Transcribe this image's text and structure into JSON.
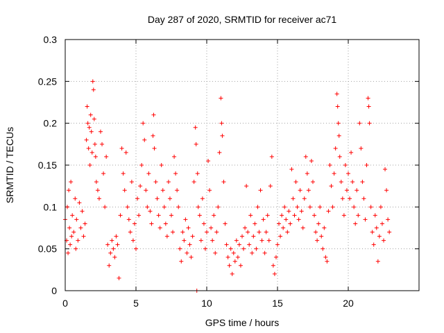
{
  "chart_data": {
    "type": "scatter",
    "title": "Day 287 of 2020, SRMTID for receiver ac71",
    "xlabel": "GPS time / hours",
    "ylabel": "SRMTID / TECUs",
    "xlim": [
      0,
      25
    ],
    "ylim": [
      0,
      0.3
    ],
    "xticks": [
      0,
      5,
      10,
      15,
      20
    ],
    "yticks": [
      0,
      0.05,
      0.1,
      0.15,
      0.2,
      0.25,
      0.3
    ],
    "xtick_labels": [
      "0",
      "5",
      "10",
      "15",
      "20"
    ],
    "ytick_labels": [
      "0",
      "0.05",
      "0.1",
      "0.15",
      "0.2",
      "0.25",
      "0.3"
    ],
    "grid": true,
    "marker": "+",
    "color": "#ff0000",
    "series": [
      {
        "name": "SRMTID",
        "points": [
          [
            0.0,
            0.085
          ],
          [
            0.1,
            0.06
          ],
          [
            0.15,
            0.1
          ],
          [
            0.2,
            0.045
          ],
          [
            0.25,
            0.12
          ],
          [
            0.3,
            0.075
          ],
          [
            0.35,
            0.055
          ],
          [
            0.4,
            0.13
          ],
          [
            0.45,
            0.065
          ],
          [
            0.5,
            0.09
          ],
          [
            0.6,
            0.07
          ],
          [
            0.7,
            0.11
          ],
          [
            0.75,
            0.05
          ],
          [
            0.8,
            0.085
          ],
          [
            0.9,
            0.06
          ],
          [
            1.0,
            0.105
          ],
          [
            1.1,
            0.075
          ],
          [
            1.2,
            0.095
          ],
          [
            1.3,
            0.065
          ],
          [
            1.4,
            0.08
          ],
          [
            1.5,
            0.18
          ],
          [
            1.55,
            0.22
          ],
          [
            1.6,
            0.2
          ],
          [
            1.65,
            0.17
          ],
          [
            1.7,
            0.195
          ],
          [
            1.75,
            0.15
          ],
          [
            1.8,
            0.21
          ],
          [
            1.85,
            0.19
          ],
          [
            1.9,
            0.165
          ],
          [
            1.95,
            0.25
          ],
          [
            2.0,
            0.24
          ],
          [
            2.05,
            0.205
          ],
          [
            2.1,
            0.175
          ],
          [
            2.15,
            0.16
          ],
          [
            2.2,
            0.13
          ],
          [
            2.3,
            0.12
          ],
          [
            2.4,
            0.11
          ],
          [
            2.5,
            0.19
          ],
          [
            2.6,
            0.175
          ],
          [
            2.7,
            0.14
          ],
          [
            2.8,
            0.1
          ],
          [
            2.9,
            0.16
          ],
          [
            3.0,
            0.055
          ],
          [
            3.1,
            0.03
          ],
          [
            3.2,
            0.045
          ],
          [
            3.3,
            0.06
          ],
          [
            3.4,
            0.05
          ],
          [
            3.5,
            0.04
          ],
          [
            3.6,
            0.065
          ],
          [
            3.7,
            0.055
          ],
          [
            3.8,
            0.015
          ],
          [
            3.9,
            0.09
          ],
          [
            4.0,
            0.17
          ],
          [
            4.1,
            0.14
          ],
          [
            4.2,
            0.12
          ],
          [
            4.3,
            0.165
          ],
          [
            4.4,
            0.1
          ],
          [
            4.5,
            0.085
          ],
          [
            4.6,
            0.07
          ],
          [
            4.7,
            0.13
          ],
          [
            4.8,
            0.06
          ],
          [
            4.9,
            0.08
          ],
          [
            5.0,
            0.05
          ],
          [
            5.1,
            0.11
          ],
          [
            5.2,
            0.09
          ],
          [
            5.3,
            0.125
          ],
          [
            5.4,
            0.15
          ],
          [
            5.5,
            0.2
          ],
          [
            5.6,
            0.18
          ],
          [
            5.7,
            0.12
          ],
          [
            5.8,
            0.1
          ],
          [
            5.9,
            0.14
          ],
          [
            6.0,
            0.095
          ],
          [
            6.1,
            0.08
          ],
          [
            6.2,
            0.185
          ],
          [
            6.25,
            0.21
          ],
          [
            6.3,
            0.17
          ],
          [
            6.4,
            0.13
          ],
          [
            6.5,
            0.11
          ],
          [
            6.6,
            0.09
          ],
          [
            6.7,
            0.075
          ],
          [
            6.8,
            0.15
          ],
          [
            6.9,
            0.12
          ],
          [
            7.0,
            0.1
          ],
          [
            7.1,
            0.08
          ],
          [
            7.2,
            0.065
          ],
          [
            7.3,
            0.13
          ],
          [
            7.4,
            0.11
          ],
          [
            7.5,
            0.09
          ],
          [
            7.6,
            0.07
          ],
          [
            7.7,
            0.16
          ],
          [
            7.8,
            0.14
          ],
          [
            7.9,
            0.12
          ],
          [
            8.0,
            0.1
          ],
          [
            8.1,
            0.05
          ],
          [
            8.2,
            0.035
          ],
          [
            8.3,
            0.07
          ],
          [
            8.4,
            0.06
          ],
          [
            8.5,
            0.085
          ],
          [
            8.6,
            0.045
          ],
          [
            8.7,
            0.075
          ],
          [
            8.8,
            0.055
          ],
          [
            8.9,
            0.04
          ],
          [
            9.0,
            0.065
          ],
          [
            9.1,
            0.13
          ],
          [
            9.2,
            0.195
          ],
          [
            9.25,
            0.175
          ],
          [
            9.3,
            0.0
          ],
          [
            9.35,
            0.14
          ],
          [
            9.4,
            0.1
          ],
          [
            9.5,
            0.09
          ],
          [
            9.6,
            0.06
          ],
          [
            9.7,
            0.11
          ],
          [
            9.8,
            0.08
          ],
          [
            9.9,
            0.05
          ],
          [
            10.0,
            0.07
          ],
          [
            10.1,
            0.155
          ],
          [
            10.2,
            0.12
          ],
          [
            10.3,
            0.075
          ],
          [
            10.4,
            0.06
          ],
          [
            10.5,
            0.09
          ],
          [
            10.6,
            0.045
          ],
          [
            10.7,
            0.07
          ],
          [
            10.8,
            0.1
          ],
          [
            10.9,
            0.165
          ],
          [
            11.0,
            0.23
          ],
          [
            11.05,
            0.2
          ],
          [
            11.1,
            0.185
          ],
          [
            11.2,
            0.13
          ],
          [
            11.3,
            0.08
          ],
          [
            11.4,
            0.055
          ],
          [
            11.5,
            0.04
          ],
          [
            11.6,
            0.03
          ],
          [
            11.7,
            0.05
          ],
          [
            11.8,
            0.02
          ],
          [
            11.9,
            0.045
          ],
          [
            12.0,
            0.035
          ],
          [
            12.1,
            0.06
          ],
          [
            12.2,
            0.04
          ],
          [
            12.3,
            0.055
          ],
          [
            12.4,
            0.03
          ],
          [
            12.5,
            0.065
          ],
          [
            12.6,
            0.05
          ],
          [
            12.7,
            0.075
          ],
          [
            12.8,
            0.125
          ],
          [
            12.9,
            0.07
          ],
          [
            13.0,
            0.055
          ],
          [
            13.1,
            0.09
          ],
          [
            13.2,
            0.045
          ],
          [
            13.3,
            0.065
          ],
          [
            13.4,
            0.08
          ],
          [
            13.5,
            0.05
          ],
          [
            13.6,
            0.1
          ],
          [
            13.7,
            0.07
          ],
          [
            13.8,
            0.12
          ],
          [
            13.9,
            0.06
          ],
          [
            14.0,
            0.085
          ],
          [
            14.1,
            0.045
          ],
          [
            14.2,
            0.07
          ],
          [
            14.3,
            0.09
          ],
          [
            14.4,
            0.06
          ],
          [
            14.5,
            0.125
          ],
          [
            14.6,
            0.16
          ],
          [
            14.7,
            0.03
          ],
          [
            14.8,
            0.02
          ],
          [
            14.9,
            0.04
          ],
          [
            15.0,
            0.055
          ],
          [
            15.1,
            0.08
          ],
          [
            15.2,
            0.065
          ],
          [
            15.3,
            0.09
          ],
          [
            15.4,
            0.075
          ],
          [
            15.5,
            0.1
          ],
          [
            15.6,
            0.085
          ],
          [
            15.7,
            0.07
          ],
          [
            15.8,
            0.095
          ],
          [
            15.9,
            0.08
          ],
          [
            16.0,
            0.145
          ],
          [
            16.1,
            0.11
          ],
          [
            16.2,
            0.09
          ],
          [
            16.3,
            0.13
          ],
          [
            16.4,
            0.1
          ],
          [
            16.5,
            0.085
          ],
          [
            16.6,
            0.12
          ],
          [
            16.7,
            0.095
          ],
          [
            16.8,
            0.075
          ],
          [
            16.9,
            0.11
          ],
          [
            17.0,
            0.16
          ],
          [
            17.1,
            0.14
          ],
          [
            17.2,
            0.12
          ],
          [
            17.3,
            0.1
          ],
          [
            17.4,
            0.155
          ],
          [
            17.5,
            0.13
          ],
          [
            17.6,
            0.09
          ],
          [
            17.7,
            0.07
          ],
          [
            17.8,
            0.06
          ],
          [
            17.9,
            0.08
          ],
          [
            18.0,
            0.1
          ],
          [
            18.1,
            0.065
          ],
          [
            18.2,
            0.05
          ],
          [
            18.3,
            0.075
          ],
          [
            18.4,
            0.04
          ],
          [
            18.5,
            0.035
          ],
          [
            18.6,
            0.095
          ],
          [
            18.7,
            0.15
          ],
          [
            18.8,
            0.125
          ],
          [
            18.9,
            0.1
          ],
          [
            19.0,
            0.14
          ],
          [
            19.1,
            0.17
          ],
          [
            19.2,
            0.235
          ],
          [
            19.25,
            0.22
          ],
          [
            19.3,
            0.2
          ],
          [
            19.35,
            0.185
          ],
          [
            19.4,
            0.16
          ],
          [
            19.5,
            0.13
          ],
          [
            19.6,
            0.11
          ],
          [
            19.7,
            0.09
          ],
          [
            19.8,
            0.15
          ],
          [
            19.9,
            0.12
          ],
          [
            20.0,
            0.14
          ],
          [
            20.1,
            0.11
          ],
          [
            20.2,
            0.165
          ],
          [
            20.3,
            0.13
          ],
          [
            20.4,
            0.1
          ],
          [
            20.5,
            0.08
          ],
          [
            20.6,
            0.12
          ],
          [
            20.7,
            0.09
          ],
          [
            20.8,
            0.2
          ],
          [
            20.9,
            0.17
          ],
          [
            21.0,
            0.13
          ],
          [
            21.1,
            0.11
          ],
          [
            21.2,
            0.085
          ],
          [
            21.3,
            0.15
          ],
          [
            21.4,
            0.23
          ],
          [
            21.45,
            0.22
          ],
          [
            21.5,
            0.2
          ],
          [
            21.6,
            0.1
          ],
          [
            21.7,
            0.07
          ],
          [
            21.8,
            0.055
          ],
          [
            21.9,
            0.09
          ],
          [
            22.0,
            0.075
          ],
          [
            22.1,
            0.035
          ],
          [
            22.2,
            0.065
          ],
          [
            22.3,
            0.1
          ],
          [
            22.4,
            0.08
          ],
          [
            22.5,
            0.06
          ],
          [
            22.6,
            0.145
          ],
          [
            22.7,
            0.12
          ],
          [
            22.8,
            0.085
          ],
          [
            22.9,
            0.07
          ]
        ]
      }
    ]
  }
}
